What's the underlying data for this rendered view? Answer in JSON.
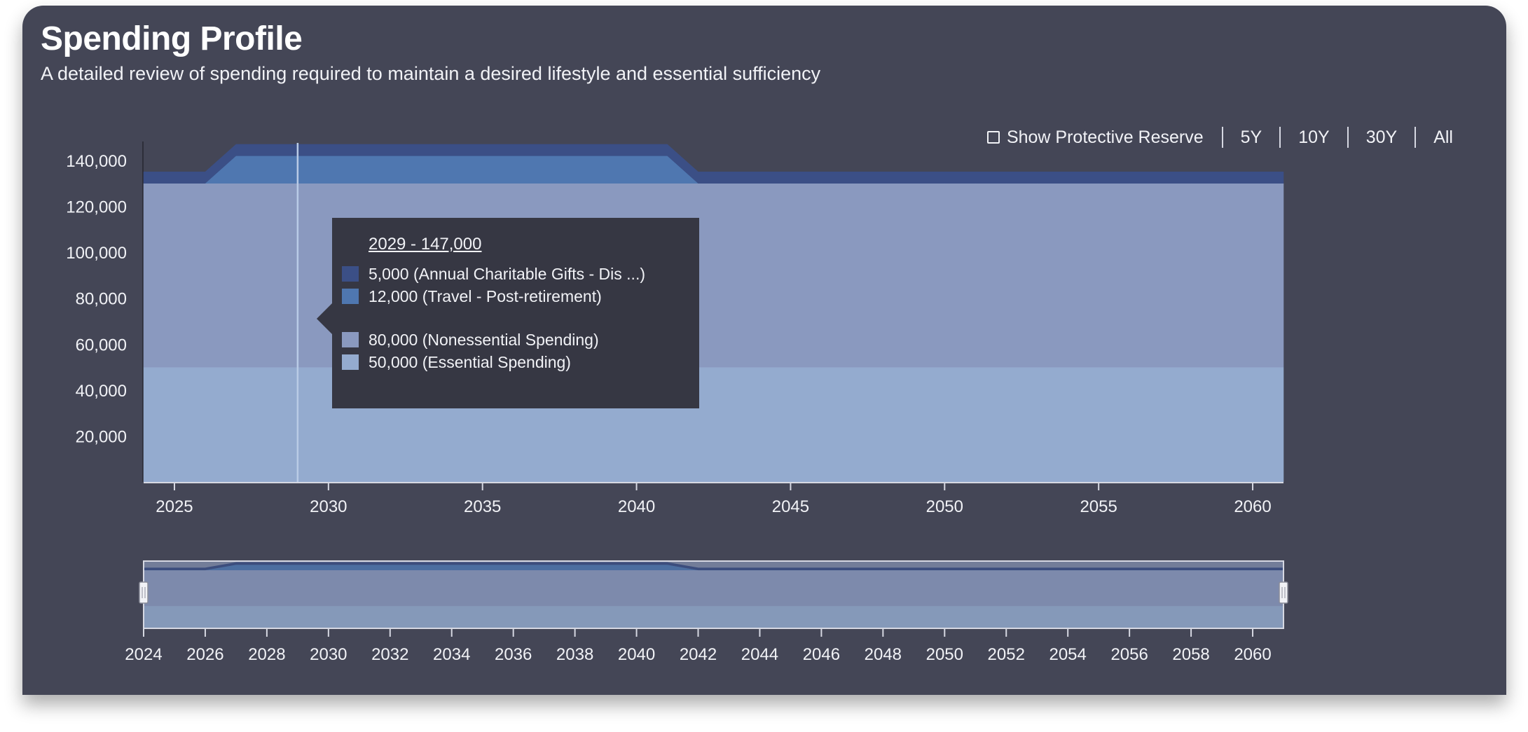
{
  "header": {
    "title": "Spending Profile",
    "subtitle": "A detailed review of spending required to maintain a desired lifestyle and essential sufficiency"
  },
  "controls": {
    "show_reserve_label": "Show Protective Reserve",
    "show_reserve_checked": false,
    "ranges": [
      "5Y",
      "10Y",
      "30Y",
      "All"
    ]
  },
  "colors": {
    "essential": "#94abcf",
    "nonessential": "#8a99bf",
    "travel": "#4f77b0",
    "charitable": "#3b4f86",
    "background": "#444656",
    "tooltip_bg": "#363743"
  },
  "tooltip": {
    "header": "2029 - 147,000",
    "rows": [
      {
        "label": "5,000 (Annual Charitable Gifts - Dis ...)",
        "color": "#3b4f86"
      },
      {
        "label": "12,000 (Travel - Post-retirement)",
        "color": "#4f77b0"
      },
      {
        "label": "80,000 (Nonessential Spending)",
        "color": "#8a99bf"
      },
      {
        "label": "50,000 (Essential Spending)",
        "color": "#94abcf"
      }
    ]
  },
  "chart_data": {
    "type": "area",
    "stacked": true,
    "x": [
      2024,
      2025,
      2026,
      2027,
      2028,
      2029,
      2030,
      2031,
      2032,
      2033,
      2034,
      2035,
      2036,
      2037,
      2038,
      2039,
      2040,
      2041,
      2042,
      2043,
      2044,
      2045,
      2046,
      2047,
      2048,
      2049,
      2050,
      2051,
      2052,
      2053,
      2054,
      2055,
      2056,
      2057,
      2058,
      2059,
      2060,
      2061
    ],
    "series": [
      {
        "name": "Essential Spending",
        "values": [
          50000,
          50000,
          50000,
          50000,
          50000,
          50000,
          50000,
          50000,
          50000,
          50000,
          50000,
          50000,
          50000,
          50000,
          50000,
          50000,
          50000,
          50000,
          50000,
          50000,
          50000,
          50000,
          50000,
          50000,
          50000,
          50000,
          50000,
          50000,
          50000,
          50000,
          50000,
          50000,
          50000,
          50000,
          50000,
          50000,
          50000,
          50000
        ]
      },
      {
        "name": "Nonessential Spending",
        "values": [
          80000,
          80000,
          80000,
          80000,
          80000,
          80000,
          80000,
          80000,
          80000,
          80000,
          80000,
          80000,
          80000,
          80000,
          80000,
          80000,
          80000,
          80000,
          80000,
          80000,
          80000,
          80000,
          80000,
          80000,
          80000,
          80000,
          80000,
          80000,
          80000,
          80000,
          80000,
          80000,
          80000,
          80000,
          80000,
          80000,
          80000,
          80000
        ]
      },
      {
        "name": "Travel - Post-retirement",
        "values": [
          0,
          0,
          0,
          12000,
          12000,
          12000,
          12000,
          12000,
          12000,
          12000,
          12000,
          12000,
          12000,
          12000,
          12000,
          12000,
          12000,
          12000,
          0,
          0,
          0,
          0,
          0,
          0,
          0,
          0,
          0,
          0,
          0,
          0,
          0,
          0,
          0,
          0,
          0,
          0,
          0,
          0
        ]
      },
      {
        "name": "Annual Charitable Gifts - Dis ...",
        "values": [
          5000,
          5000,
          5000,
          5000,
          5000,
          5000,
          5000,
          5000,
          5000,
          5000,
          5000,
          5000,
          5000,
          5000,
          5000,
          5000,
          5000,
          5000,
          5000,
          5000,
          5000,
          5000,
          5000,
          5000,
          5000,
          5000,
          5000,
          5000,
          5000,
          5000,
          5000,
          5000,
          5000,
          5000,
          5000,
          5000,
          5000,
          5000
        ]
      }
    ],
    "yticks": [
      "20,000",
      "40,000",
      "60,000",
      "80,000",
      "100,000",
      "120,000",
      "140,000"
    ],
    "ytick_values": [
      20000,
      40000,
      60000,
      80000,
      100000,
      120000,
      140000
    ],
    "ylim": [
      0,
      147000
    ],
    "xlim": [
      2024,
      2061
    ],
    "xticks": [
      "2025",
      "2030",
      "2035",
      "2040",
      "2045",
      "2050",
      "2055",
      "2060"
    ],
    "xtick_values": [
      2025,
      2030,
      2035,
      2040,
      2045,
      2050,
      2055,
      2060
    ],
    "hover_x": 2029,
    "navigator": {
      "xticks": [
        "2024",
        "2026",
        "2028",
        "2030",
        "2032",
        "2034",
        "2036",
        "2038",
        "2040",
        "2042",
        "2044",
        "2046",
        "2048",
        "2050",
        "2052",
        "2054",
        "2056",
        "2058",
        "2060"
      ],
      "xtick_values": [
        2024,
        2026,
        2028,
        2030,
        2032,
        2034,
        2036,
        2038,
        2040,
        2042,
        2044,
        2046,
        2048,
        2050,
        2052,
        2054,
        2056,
        2058,
        2060
      ],
      "range": [
        2024,
        2061
      ]
    },
    "grid": false,
    "legend": "tooltip"
  }
}
